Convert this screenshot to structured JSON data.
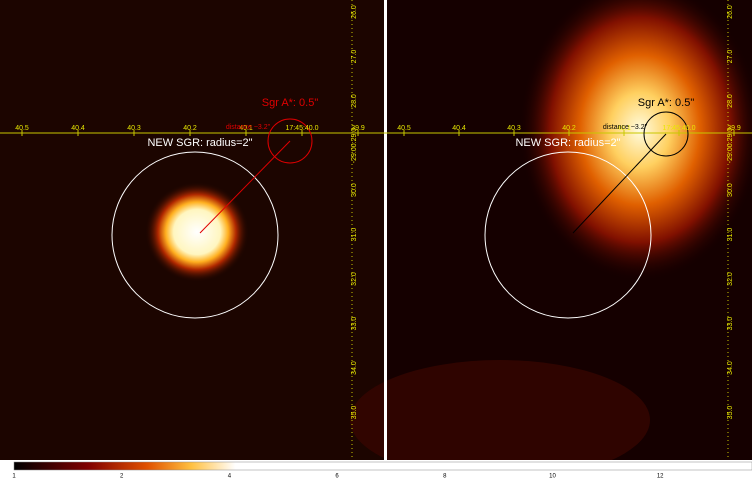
{
  "left": {
    "source_label": "Sgr A*: 0.5\"",
    "distance_label": "distance ~3.2\"",
    "region_label": "NEW SGR: radius=2\""
  },
  "right": {
    "source_label": "Sgr A*: 0.5\"",
    "distance_label": "distance ~3.2\"",
    "region_label": "NEW SGR: radius=2\""
  },
  "ra_ticks": [
    "40.5",
    "40.4",
    "40.3",
    "40.2",
    "40.1",
    "17:45:40.0",
    "39.9"
  ],
  "dec_ticks": [
    "26.0",
    "27.0",
    "28.0",
    "-29:00:29.0",
    "30.0",
    "31.0",
    "32.0",
    "33.0",
    "34.0",
    "35.0"
  ],
  "colorbar_ticks": [
    "1",
    "2",
    "4",
    "6",
    "8",
    "10",
    "12"
  ]
}
